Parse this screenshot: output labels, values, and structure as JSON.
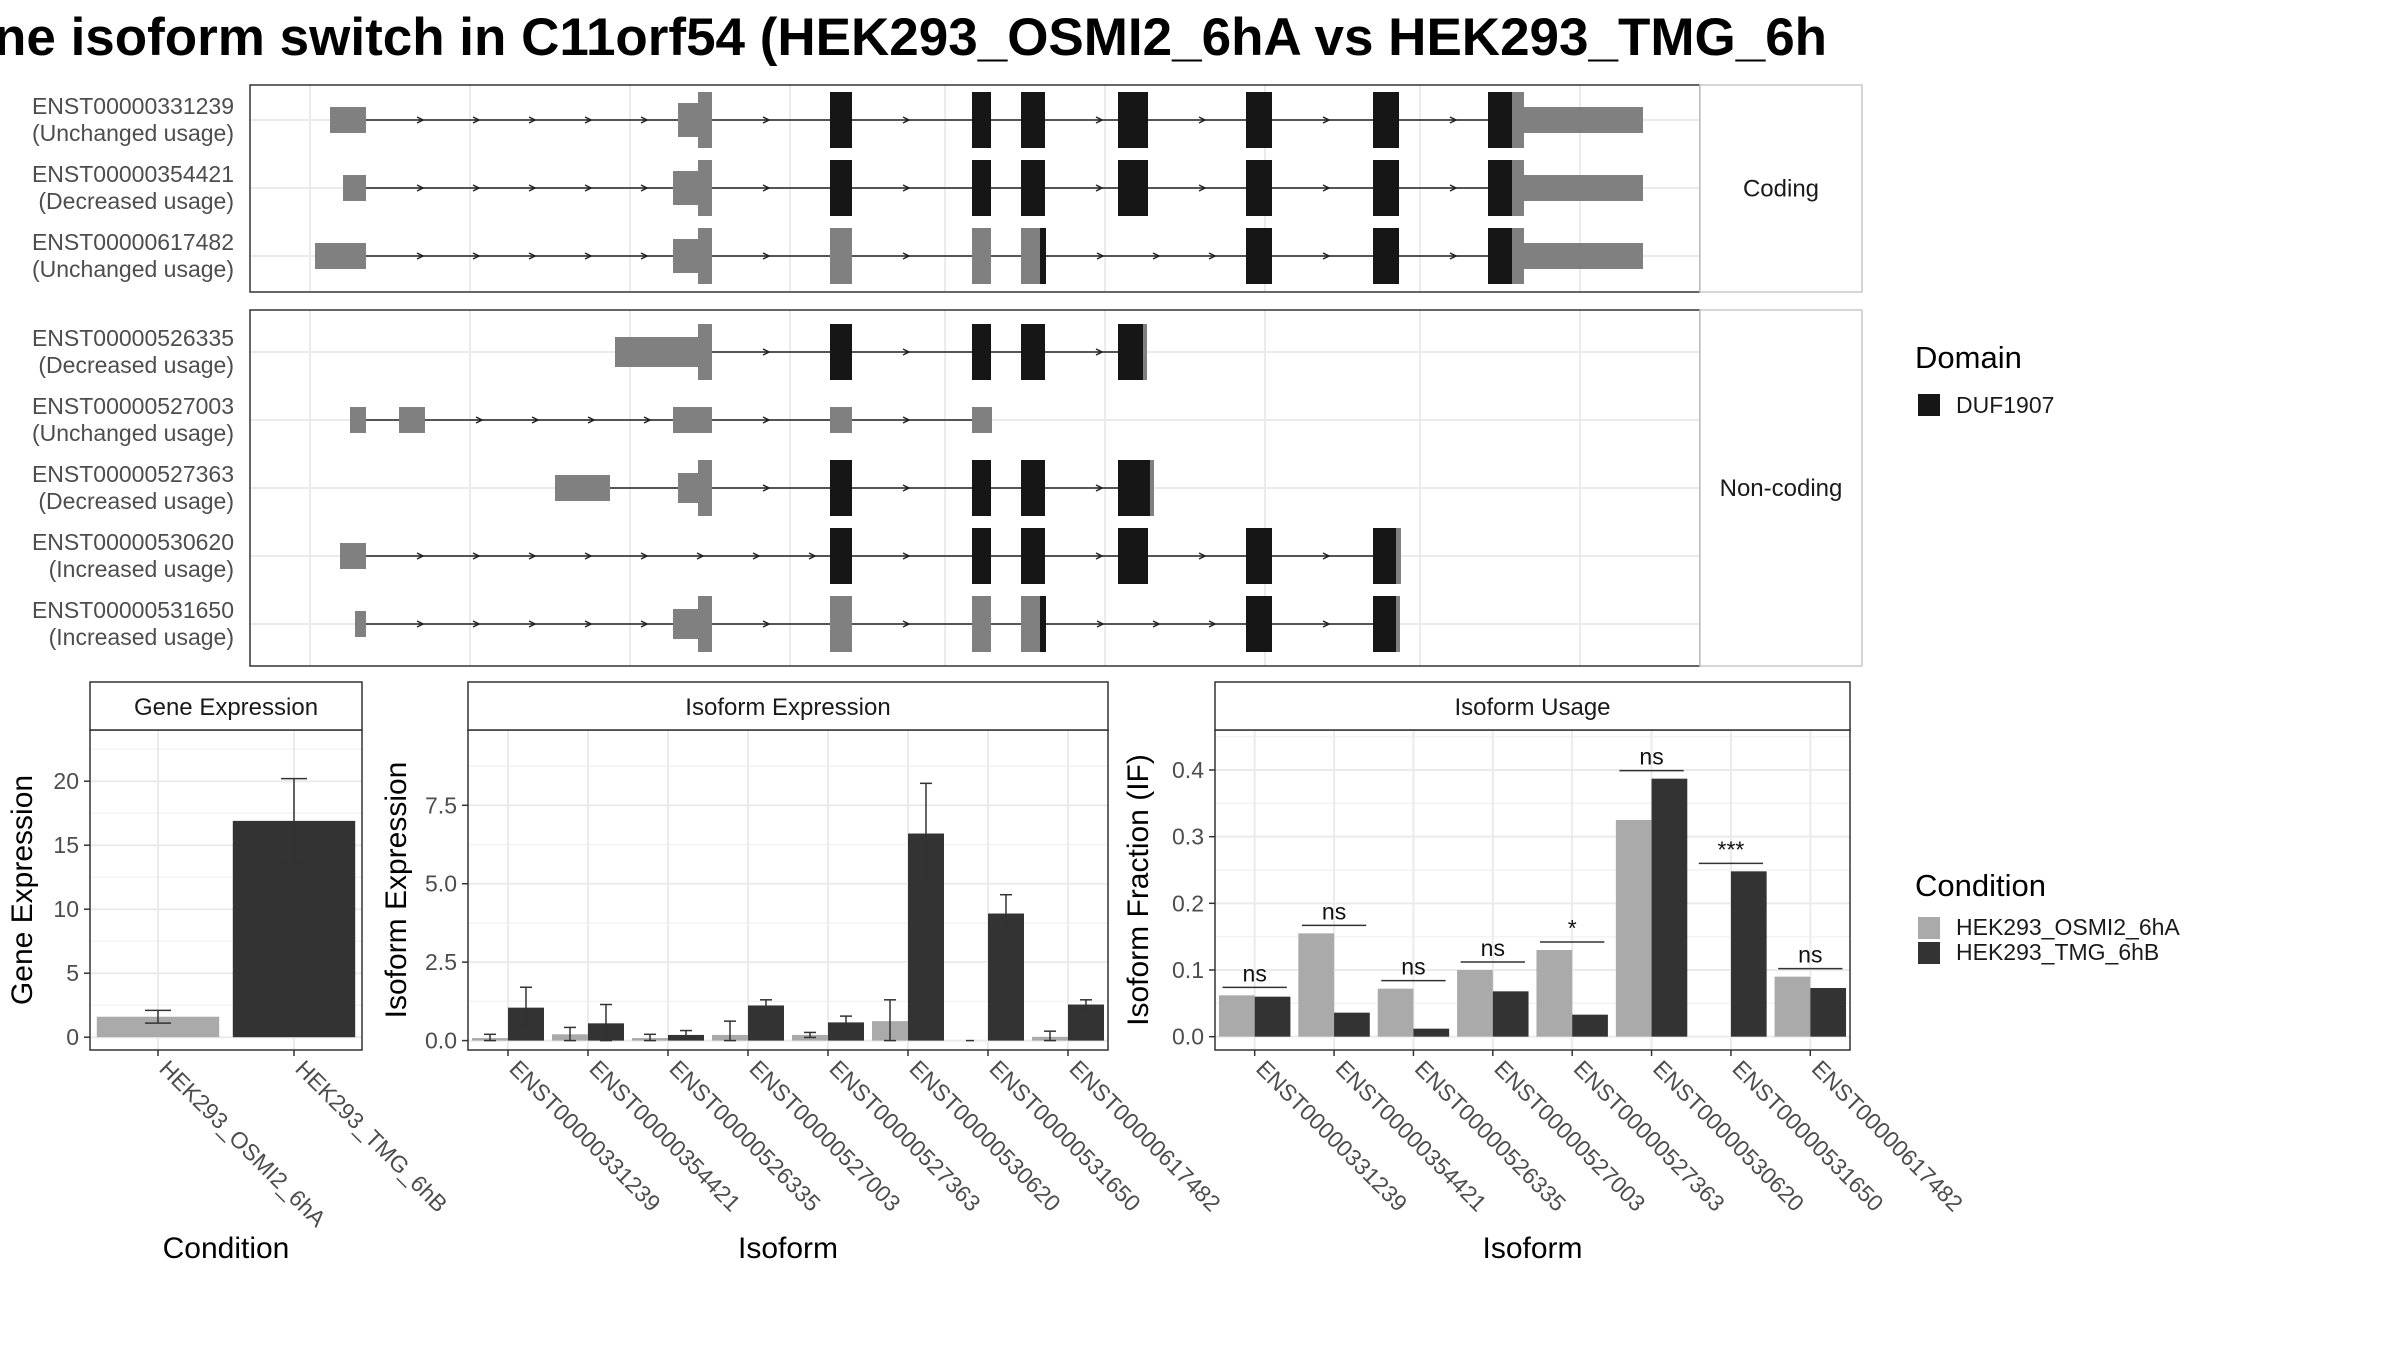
{
  "title": "ne isoform switch in C11orf54 (HEK293_OSMI2_6hA vs HEK293_TMG_6h",
  "colors": {
    "exon_gray": "#808080",
    "domain_black": "#161616",
    "osmi": "#aaaaaa",
    "tmg": "#333333",
    "grid": "#ebebeb",
    "strip_bg": "#ffffff",
    "border": "#333333"
  },
  "structure": {
    "coding_label": "Coding",
    "noncoding_label": "Non-coding",
    "coding": [
      {
        "id": "ENST00000331239",
        "usage": "(Unchanged usage)"
      },
      {
        "id": "ENST00000354421",
        "usage": "(Decreased usage)"
      },
      {
        "id": "ENST00000617482",
        "usage": "(Unchanged usage)"
      }
    ],
    "noncoding": [
      {
        "id": "ENST00000526335",
        "usage": "(Decreased usage)"
      },
      {
        "id": "ENST00000527003",
        "usage": "(Unchanged usage)"
      },
      {
        "id": "ENST00000527363",
        "usage": "(Decreased usage)"
      },
      {
        "id": "ENST00000530620",
        "usage": "(Increased usage)"
      },
      {
        "id": "ENST00000531650",
        "usage": "(Increased usage)"
      }
    ]
  },
  "legend_domain": {
    "title": "Domain",
    "item": "DUF1907"
  },
  "legend_condition": {
    "title": "Condition",
    "items": [
      "HEK293_OSMI2_6hA",
      "HEK293_TMG_6hB"
    ]
  },
  "chart_data": [
    {
      "type": "bar",
      "title": "Gene Expression",
      "xlabel": "Condition",
      "ylabel": "Gene Expression",
      "categories": [
        "HEK293_OSMI2_6hA",
        "HEK293_TMG_6hB"
      ],
      "values": [
        1.6,
        16.9
      ],
      "err_low": [
        1.1,
        13.6
      ],
      "err_high": [
        2.1,
        20.2
      ],
      "ylim": [
        -1,
        24
      ],
      "yticks": [
        0,
        5,
        10,
        15,
        20
      ]
    },
    {
      "type": "bar",
      "title": "Isoform Expression",
      "xlabel": "Isoform",
      "ylabel": "Isoform Expression",
      "categories": [
        "ENST00000331239",
        "ENST00000354421",
        "ENST00000526335",
        "ENST00000527003",
        "ENST00000527363",
        "ENST00000530620",
        "ENST00000531650",
        "ENST00000617482"
      ],
      "series": [
        {
          "name": "HEK293_OSMI2_6hA",
          "values": [
            0.08,
            0.2,
            0.08,
            0.18,
            0.18,
            0.62,
            0.0,
            0.12
          ],
          "err_low": [
            0.0,
            0.0,
            0.0,
            0.0,
            0.1,
            0.0,
            0.0,
            0.0
          ],
          "err_high": [
            0.2,
            0.42,
            0.2,
            0.62,
            0.26,
            1.3,
            0.0,
            0.3
          ]
        },
        {
          "name": "HEK293_TMG_6hB",
          "values": [
            1.05,
            0.55,
            0.18,
            1.12,
            0.58,
            6.6,
            4.05,
            1.15
          ],
          "err_low": [
            0.5,
            0.0,
            0.05,
            0.95,
            0.42,
            5.0,
            3.45,
            1.0
          ],
          "err_high": [
            1.7,
            1.15,
            0.32,
            1.3,
            0.78,
            8.2,
            4.65,
            1.3
          ]
        }
      ],
      "ylim": [
        -0.3,
        9.9
      ],
      "yticks": [
        0.0,
        2.5,
        5.0,
        7.5
      ],
      "ytick_labels": [
        "0.0",
        "2.5",
        "5.0",
        "7.5"
      ]
    },
    {
      "type": "bar",
      "title": "Isoform Usage",
      "xlabel": "Isoform",
      "ylabel": "Isoform Fraction (IF)",
      "categories": [
        "ENST00000331239",
        "ENST00000354421",
        "ENST00000526335",
        "ENST00000527003",
        "ENST00000527363",
        "ENST00000530620",
        "ENST00000531650",
        "ENST00000617482"
      ],
      "series": [
        {
          "name": "HEK293_OSMI2_6hA",
          "values": [
            0.062,
            0.155,
            0.072,
            0.1,
            0.13,
            0.325,
            0.0,
            0.09
          ]
        },
        {
          "name": "HEK293_TMG_6hB",
          "values": [
            0.06,
            0.036,
            0.012,
            0.068,
            0.033,
            0.387,
            0.248,
            0.073
          ]
        }
      ],
      "significance": [
        "ns",
        "ns",
        "ns",
        "ns",
        "*",
        "ns",
        "***",
        "ns"
      ],
      "ylim": [
        -0.02,
        0.46
      ],
      "yticks": [
        0.0,
        0.1,
        0.2,
        0.3,
        0.4
      ],
      "ytick_labels": [
        "0.0",
        "0.1",
        "0.2",
        "0.3",
        "0.4"
      ]
    }
  ]
}
